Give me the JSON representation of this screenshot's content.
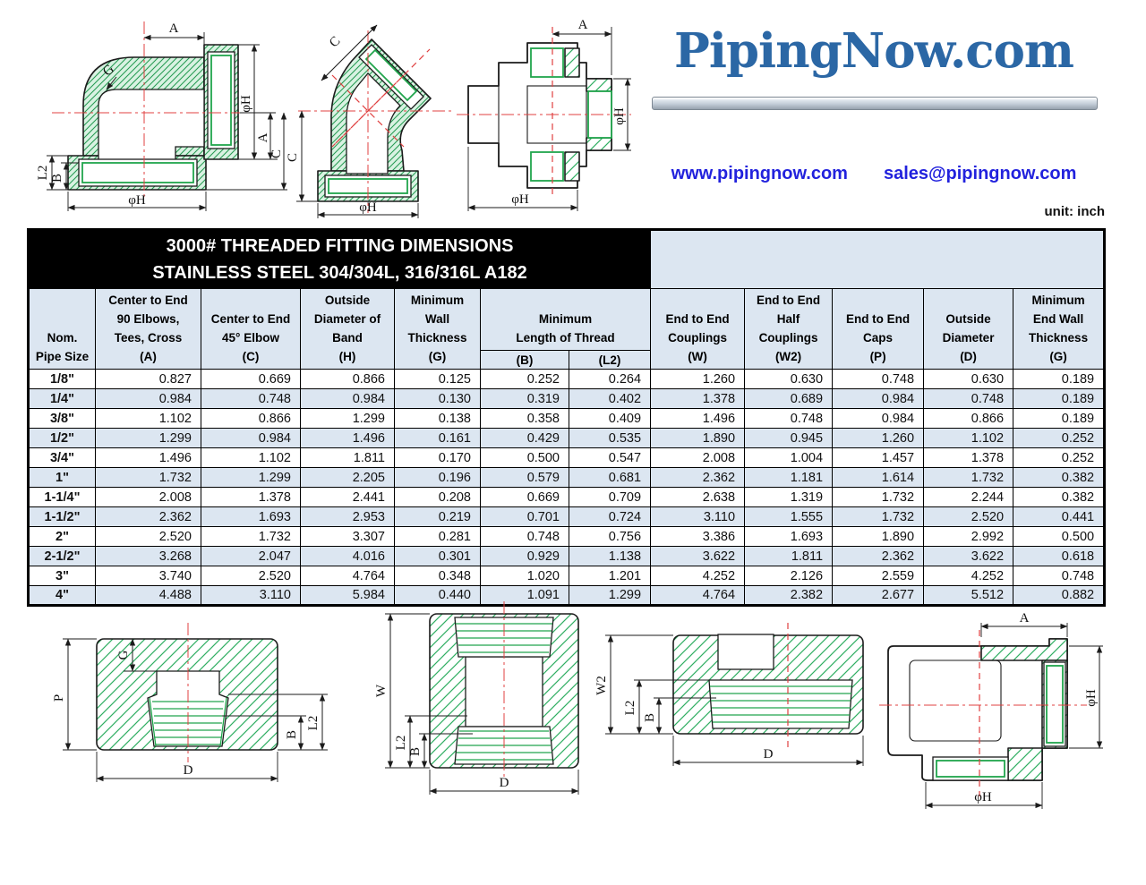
{
  "branding": {
    "logo_text": "PipingNow.com",
    "website": "www.pipingnow.com",
    "email": "sales@pipingnow.com"
  },
  "unit_label": "unit: inch",
  "colors": {
    "accent_blue": "#dce6f1",
    "logo_blue": "#2b67a5",
    "link_blue": "#2222dd",
    "hatch_green": "#2fae62",
    "thread_green": "#21a54d",
    "centerline_red": "#e04040"
  },
  "table": {
    "title_line1": "3000# THREADED FITTING DIMENSIONS",
    "title_line2": "STAINLESS STEEL 304/304L, 316/316L  A182",
    "columns": [
      {
        "lines": [
          "Nom.",
          "Pipe Size"
        ]
      },
      {
        "lines": [
          "Center to End",
          "90 Elbows,",
          "Tees, Cross",
          "(A)"
        ]
      },
      {
        "lines": [
          "Center to End",
          "45° Elbow",
          "(C)"
        ]
      },
      {
        "lines": [
          "Outside",
          "Diameter of",
          "Band",
          "(H)"
        ]
      },
      {
        "lines": [
          "Minimum",
          "Wall",
          "Thickness",
          "(G)"
        ]
      },
      {
        "lines": [
          "Minimum",
          "Length of Thread"
        ]
      },
      {
        "lines": [
          "End to End",
          "Couplings",
          "(W)"
        ]
      },
      {
        "lines": [
          "End to End",
          "Half",
          "Couplings",
          "(W2)"
        ]
      },
      {
        "lines": [
          "End to End",
          "Caps",
          "(P)"
        ]
      },
      {
        "lines": [
          "Outside",
          "Diameter",
          "(D)"
        ]
      },
      {
        "lines": [
          "Minimum",
          "End Wall",
          "Thickness",
          "(G)"
        ]
      }
    ],
    "thread_sub": [
      "(B)",
      "(L2)"
    ],
    "rows": [
      {
        "size": "1/8\"",
        "values": [
          "0.827",
          "0.669",
          "0.866",
          "0.125",
          "0.252",
          "0.264",
          "1.260",
          "0.630",
          "0.748",
          "0.630",
          "0.189"
        ]
      },
      {
        "size": "1/4\"",
        "values": [
          "0.984",
          "0.748",
          "0.984",
          "0.130",
          "0.319",
          "0.402",
          "1.378",
          "0.689",
          "0.984",
          "0.748",
          "0.189"
        ]
      },
      {
        "size": "3/8\"",
        "values": [
          "1.102",
          "0.866",
          "1.299",
          "0.138",
          "0.358",
          "0.409",
          "1.496",
          "0.748",
          "0.984",
          "0.866",
          "0.189"
        ]
      },
      {
        "size": "1/2\"",
        "values": [
          "1.299",
          "0.984",
          "1.496",
          "0.161",
          "0.429",
          "0.535",
          "1.890",
          "0.945",
          "1.260",
          "1.102",
          "0.252"
        ]
      },
      {
        "size": "3/4\"",
        "values": [
          "1.496",
          "1.102",
          "1.811",
          "0.170",
          "0.500",
          "0.547",
          "2.008",
          "1.004",
          "1.457",
          "1.378",
          "0.252"
        ]
      },
      {
        "size": "1\"",
        "values": [
          "1.732",
          "1.299",
          "2.205",
          "0.196",
          "0.579",
          "0.681",
          "2.362",
          "1.181",
          "1.614",
          "1.732",
          "0.382"
        ]
      },
      {
        "size": "1-1/4\"",
        "values": [
          "2.008",
          "1.378",
          "2.441",
          "0.208",
          "0.669",
          "0.709",
          "2.638",
          "1.319",
          "1.732",
          "2.244",
          "0.382"
        ]
      },
      {
        "size": "1-1/2\"",
        "values": [
          "2.362",
          "1.693",
          "2.953",
          "0.219",
          "0.701",
          "0.724",
          "3.110",
          "1.555",
          "1.732",
          "2.520",
          "0.441"
        ]
      },
      {
        "size": "2\"",
        "values": [
          "2.520",
          "1.732",
          "3.307",
          "0.281",
          "0.748",
          "0.756",
          "3.386",
          "1.693",
          "1.890",
          "2.992",
          "0.500"
        ]
      },
      {
        "size": "2-1/2\"",
        "values": [
          "3.268",
          "2.047",
          "4.016",
          "0.301",
          "0.929",
          "1.138",
          "3.622",
          "1.811",
          "2.362",
          "3.622",
          "0.618"
        ]
      },
      {
        "size": "3\"",
        "values": [
          "3.740",
          "2.520",
          "4.764",
          "0.348",
          "1.020",
          "1.201",
          "4.252",
          "2.126",
          "2.559",
          "4.252",
          "0.748"
        ]
      },
      {
        "size": "4\"",
        "values": [
          "4.488",
          "3.110",
          "5.984",
          "0.440",
          "1.091",
          "1.299",
          "4.764",
          "2.382",
          "2.677",
          "5.512",
          "0.882"
        ]
      }
    ]
  },
  "dim_labels": {
    "A": "A",
    "B": "B",
    "C": "C",
    "D": "D",
    "G": "G",
    "P": "P",
    "W": "W",
    "W2": "W2",
    "L2": "L2",
    "phiH": "φH"
  }
}
